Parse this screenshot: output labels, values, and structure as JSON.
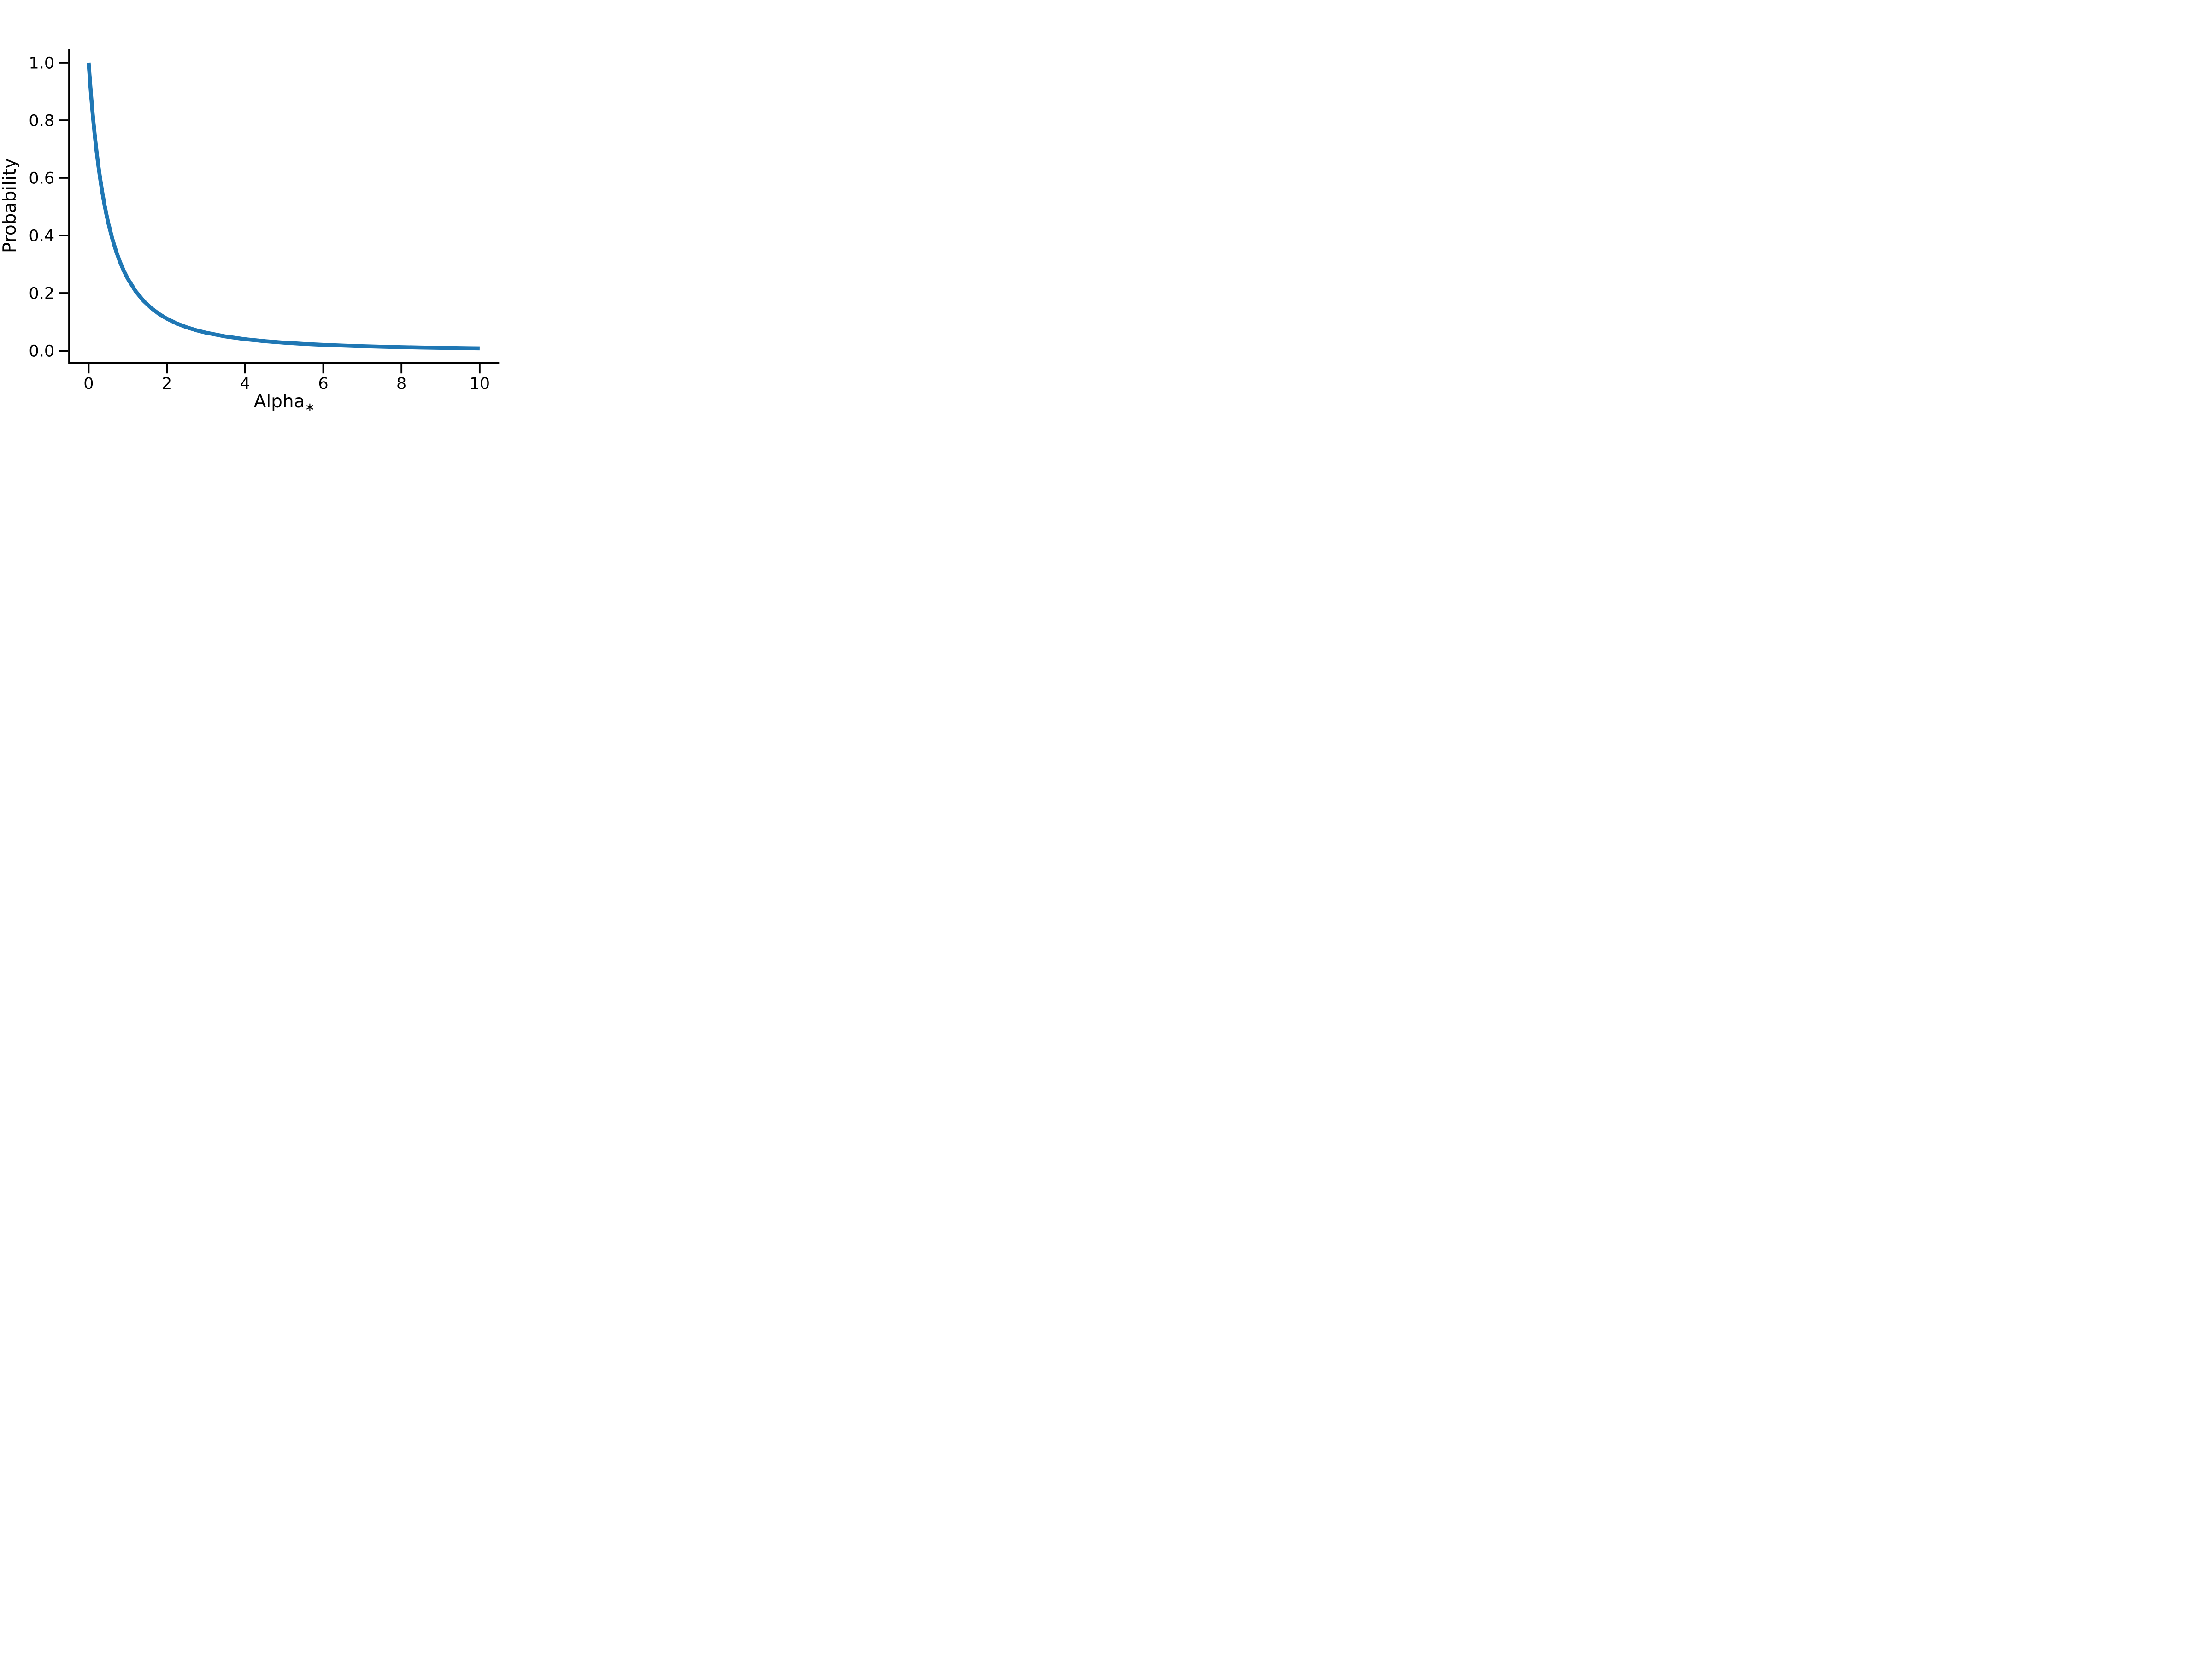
{
  "chart_data": {
    "type": "line",
    "title": "",
    "xlabel": "Alpha",
    "xlabel_subscript": "∗",
    "ylabel": "Probability",
    "x_tick_labels": [
      "0",
      "2",
      "4",
      "6",
      "8",
      "10"
    ],
    "y_tick_labels": [
      "0.0",
      "0.2",
      "0.4",
      "0.6",
      "0.8",
      "1.0"
    ],
    "xlim": [
      -0.5,
      10.5
    ],
    "ylim": [
      -0.042,
      1.048
    ],
    "grid": false,
    "legend": null,
    "line_color": "#1f77b4",
    "axis_color": "#000000",
    "background_color": "#ffffff",
    "series": [
      {
        "name": "probability-curve",
        "x": [
          0,
          0.025,
          0.05,
          0.075,
          0.1,
          0.125,
          0.15,
          0.175,
          0.2,
          0.25,
          0.3,
          0.35,
          0.4,
          0.45,
          0.5,
          0.6,
          0.7,
          0.8,
          0.9,
          1.0,
          1.2,
          1.4,
          1.6,
          1.8,
          2.0,
          2.25,
          2.5,
          2.75,
          3.0,
          3.5,
          4.0,
          4.5,
          5.0,
          5.5,
          6.0,
          6.5,
          7.0,
          7.5,
          8.0,
          8.5,
          9.0,
          9.5,
          10.0
        ],
        "y": [
          1.0,
          0.9518,
          0.907,
          0.8653,
          0.8264,
          0.7901,
          0.7561,
          0.7242,
          0.6944,
          0.64,
          0.5917,
          0.5487,
          0.5102,
          0.4756,
          0.4444,
          0.3906,
          0.346,
          0.3086,
          0.277,
          0.25,
          0.2066,
          0.1736,
          0.1479,
          0.1276,
          0.1111,
          0.0947,
          0.0816,
          0.0711,
          0.0625,
          0.0494,
          0.04,
          0.0331,
          0.0278,
          0.0237,
          0.0204,
          0.0178,
          0.0156,
          0.0138,
          0.0123,
          0.0111,
          0.01,
          0.0091,
          0.0083
        ]
      }
    ]
  }
}
